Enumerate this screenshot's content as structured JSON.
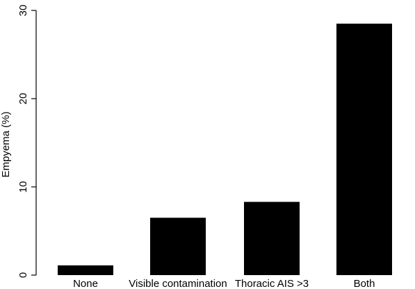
{
  "chart_data": {
    "type": "bar",
    "categories": [
      "None",
      "Visible contamination",
      "Thoracic AIS >3",
      "Both"
    ],
    "values": [
      1.1,
      6.5,
      8.3,
      28.5
    ],
    "title": "",
    "xlabel": "",
    "ylabel": "Empyema (%)",
    "ylim": [
      0,
      30
    ],
    "yticks": [
      0,
      10,
      20,
      30
    ],
    "grid": false,
    "bar_color": "#000000"
  }
}
